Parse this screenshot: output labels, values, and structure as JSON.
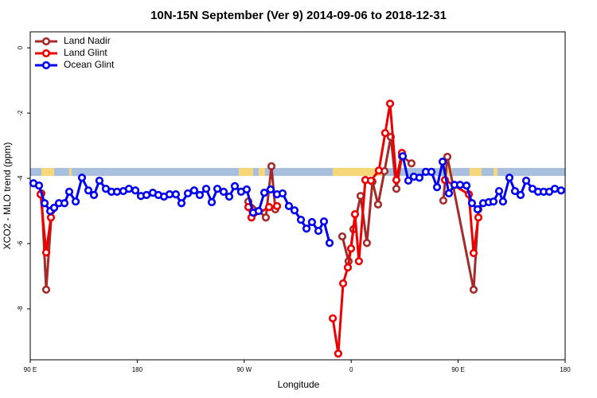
{
  "chart_data": {
    "type": "line",
    "title": "10N-15N September (Ver 9)   2014-09-06 to 2018-12-31",
    "x_label": "Longitude",
    "y_label": "XCO2 - MLO trend (ppm)",
    "xlim": [
      90,
      540
    ],
    "ylim": [
      -9.56,
      0.49
    ],
    "xticks": [
      {
        "value": 90,
        "label": "90 E"
      },
      180,
      {
        "value": 270,
        "label": "90 W"
      },
      {
        "value": 360,
        "label": "0"
      },
      {
        "value": 450,
        "label": "90 E"
      },
      {
        "value": 540,
        "label": "180"
      }
    ],
    "yticks": [
      0,
      -2,
      -4,
      -6,
      -8
    ],
    "legend_position": "upper-left",
    "series": [
      {
        "name": "Land Nadir",
        "color": "#a52a2a",
        "x": [
          99.4,
          103.4,
          108.1,
          200,
          273.5,
          288.2,
          292.9,
          296.2,
          330,
          352.5,
          357.8,
          361.9,
          367.9,
          373.2,
          377.9,
          382.6,
          388.0,
          393.3,
          398.0,
          402.7,
          410.7,
          420,
          437.5,
          440.9,
          463.0,
          467.0
        ],
        "values": [
          -4.46,
          -7.41,
          -4.98,
          null,
          -4.71,
          -5.2,
          -3.63,
          -4.95,
          null,
          -5.78,
          -6.54,
          -5.56,
          -4.54,
          -5.98,
          -4.1,
          -4.8,
          -3.78,
          -2.73,
          -4.32,
          -3.32,
          -3.54,
          null,
          -4.68,
          -3.34,
          -7.41,
          -4.95
        ]
      },
      {
        "name": "Land Glint",
        "color": "#ee0000",
        "x": [
          98.7,
          103.4,
          107.4,
          200,
          273.5,
          276.1,
          290.9,
          297.6,
          320,
          344.5,
          349.1,
          353.2,
          357.2,
          359.9,
          363.2,
          366.5,
          371.9,
          376.6,
          383.3,
          388.6,
          392.7,
          398.0,
          402.7,
          420,
          438.9,
          459.0,
          463.0,
          467.0
        ],
        "values": [
          -4.49,
          -6.27,
          -5.2,
          null,
          -4.88,
          -5.2,
          -4.88,
          -4.85,
          null,
          -8.29,
          -9.37,
          -7.22,
          -6.73,
          -6.15,
          -5.1,
          -6.54,
          -4.05,
          -4.07,
          -3.76,
          -2.61,
          -1.71,
          -4.05,
          -3.22,
          null,
          -4.05,
          -4.49,
          -6.29,
          -5.2
        ]
      },
      {
        "name": "Ocean Glint",
        "color": "#0000ee",
        "x": [
          92.7,
          97.4,
          102.1,
          106.8,
          110.1,
          114.1,
          118.8,
          122.8,
          128.2,
          133.5,
          138.9,
          143.6,
          148.2,
          153.6,
          158.3,
          163.0,
          168.3,
          173.0,
          178.4,
          183.1,
          187.8,
          193.1,
          197.8,
          202.5,
          207.2,
          212.5,
          217.2,
          222.6,
          227.9,
          232.6,
          238.0,
          242.7,
          247.4,
          252.7,
          257.4,
          262.1,
          267.4,
          272.1,
          277.5,
          282.2,
          286.9,
          292.2,
          297.6,
          302.3,
          307.6,
          312.3,
          317.7,
          322.4,
          327.0,
          332.4,
          337.1,
          341.8,
          370,
          403.4,
          408.1,
          412.7,
          417.4,
          422.8,
          427.5,
          432.2,
          436.9,
          442.2,
          446.9,
          451.6,
          457.0,
          461.6,
          466.3,
          471.0,
          475.7,
          479.7,
          484.4,
          487.7,
          493.1,
          497.8,
          502.5,
          507.2,
          512.5,
          517.2,
          521.9,
          526.6,
          531.3,
          536.6
        ],
        "values": [
          -4.15,
          -4.22,
          -4.76,
          -5.0,
          -4.9,
          -4.76,
          -4.76,
          -4.41,
          -4.71,
          -3.98,
          -4.37,
          -4.51,
          -4.07,
          -4.32,
          -4.41,
          -4.41,
          -4.39,
          -4.32,
          -4.37,
          -4.54,
          -4.51,
          -4.44,
          -4.51,
          -4.56,
          -4.49,
          -4.49,
          -4.76,
          -4.46,
          -4.37,
          -4.51,
          -4.32,
          -4.73,
          -4.32,
          -4.41,
          -4.56,
          -4.24,
          -4.41,
          -4.34,
          -5.05,
          -5.0,
          -4.44,
          -4.34,
          -4.49,
          -4.46,
          -4.85,
          -4.98,
          -5.27,
          -5.54,
          -5.34,
          -5.61,
          -5.32,
          -5.98,
          null,
          -3.32,
          -4.07,
          -3.95,
          -3.98,
          -3.8,
          -3.8,
          -4.27,
          -3.49,
          -4.46,
          -4.2,
          -4.2,
          -4.22,
          -4.76,
          -4.95,
          -4.76,
          -4.73,
          -4.71,
          -4.39,
          -4.71,
          -3.98,
          -4.39,
          -4.51,
          -4.07,
          -4.32,
          -4.41,
          -4.41,
          -4.41,
          -4.32,
          -4.37
        ]
      }
    ]
  }
}
